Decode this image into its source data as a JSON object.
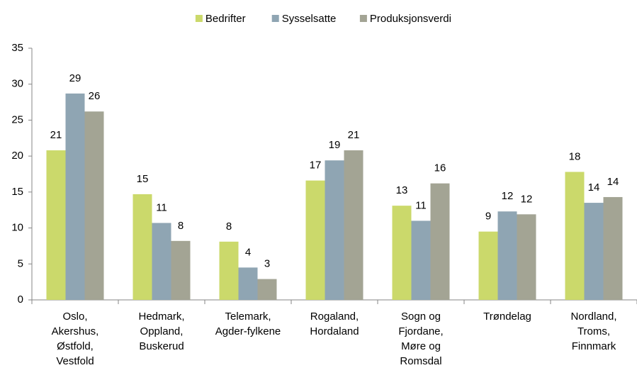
{
  "chart_data": {
    "type": "bar",
    "categories": [
      "Oslo,\nAkershus,\nØstfold,\nVestfold",
      "Hedmark,\nOppland,\nBuskerud",
      "Telemark,\nAgder-fylkene",
      "Rogaland,\nHordaland",
      "Sogn og\nFjordane,\nMøre og\nRomsdal",
      "Trøndelag",
      "Nordland,\nTroms,\nFinnmark"
    ],
    "series": [
      {
        "name": "Bedrifter",
        "color": "#cbd96b",
        "values": [
          20.8,
          14.7,
          8.1,
          16.6,
          13.1,
          9.5,
          17.8
        ],
        "value_labels": [
          "21",
          "15",
          "8",
          "17",
          "13",
          "9",
          "18"
        ]
      },
      {
        "name": "Sysselsatte",
        "color": "#8fa5b3",
        "values": [
          28.7,
          10.7,
          4.5,
          19.4,
          11.0,
          12.3,
          13.5
        ],
        "value_labels": [
          "29",
          "11",
          "4",
          "19",
          "11",
          "12",
          "14"
        ]
      },
      {
        "name": "Produksjonsverdi",
        "color": "#a3a494",
        "values": [
          26.2,
          8.2,
          2.9,
          20.8,
          16.2,
          11.9,
          14.3
        ],
        "value_labels": [
          "26",
          "8",
          "3",
          "21",
          "16",
          "12",
          "14"
        ]
      }
    ],
    "ylim": [
      0,
      35
    ],
    "yticks": [
      0,
      5,
      10,
      15,
      20,
      25,
      30,
      35
    ],
    "grid": false,
    "legend": "top"
  }
}
